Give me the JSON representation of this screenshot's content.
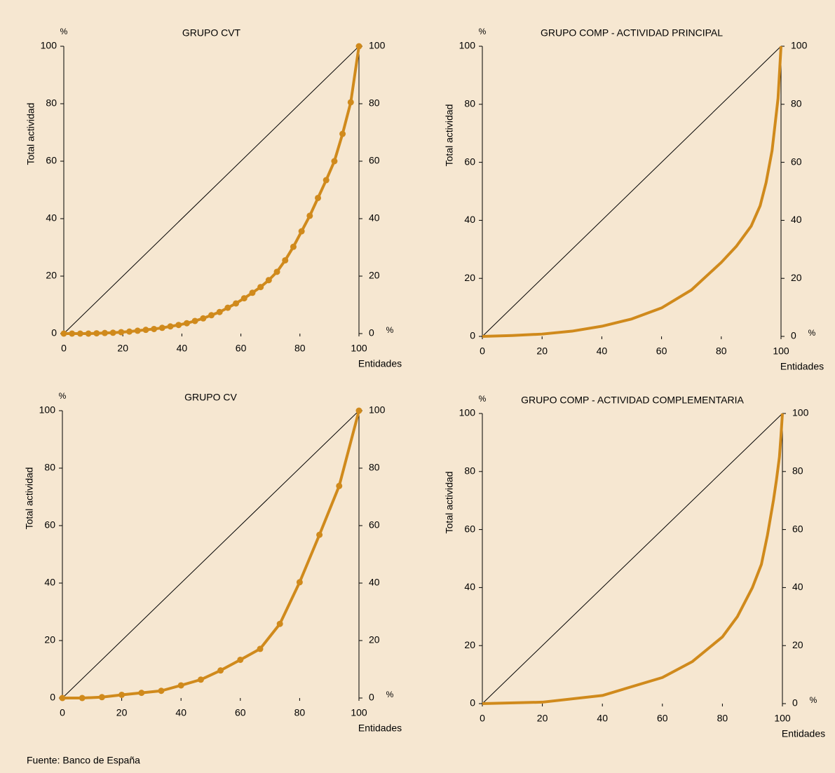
{
  "chart_data": [
    {
      "type": "line",
      "title": "GRUPO CVT",
      "ylabel": "Total actividad",
      "xlabel": "Entidades",
      "y_unit": "%",
      "x_unit": "%",
      "xlim": [
        0,
        100
      ],
      "ylim": [
        0,
        100
      ],
      "y2lim": [
        0,
        100
      ],
      "xticks": [
        0,
        20,
        40,
        60,
        80,
        100
      ],
      "yticks": [
        0,
        20,
        40,
        60,
        80,
        100
      ],
      "y2ticks": [
        0,
        20,
        40,
        60,
        80,
        100
      ],
      "series": [
        {
          "color": "#000000",
          "x": [
            0,
            100
          ],
          "values": [
            0,
            100
          ]
        },
        {
          "color": "#d08a1c",
          "markers": true,
          "x": [
            0,
            2.78,
            5.56,
            8.33,
            11.11,
            13.89,
            16.67,
            19.44,
            22.22,
            25,
            27.78,
            30.56,
            33.33,
            36.11,
            38.89,
            41.67,
            44.44,
            47.22,
            50,
            52.78,
            55.56,
            58.33,
            61.11,
            63.89,
            66.67,
            69.44,
            72.22,
            75,
            77.78,
            80.56,
            83.33,
            86.11,
            88.89,
            91.67,
            94.44,
            97.22,
            100
          ],
          "values": [
            0,
            0,
            0,
            0,
            0.1,
            0.2,
            0.3,
            0.5,
            0.7,
            1.0,
            1.3,
            1.6,
            2.0,
            2.5,
            3.0,
            3.6,
            4.4,
            5.3,
            6.4,
            7.5,
            9.0,
            10.5,
            12.3,
            14.2,
            16.2,
            18.6,
            21.5,
            25.5,
            30.2,
            35.6,
            41.0,
            47.2,
            53.4,
            60.0,
            69.5,
            80.5,
            100
          ]
        }
      ]
    },
    {
      "type": "line",
      "title": "GRUPO COMP - ACTIVIDAD PRINCIPAL",
      "ylabel": "Total actividad",
      "xlabel": "Entidades",
      "y_unit": "%",
      "x_unit": "%",
      "xlim": [
        0,
        100
      ],
      "ylim": [
        0,
        100
      ],
      "y2lim": [
        0,
        100
      ],
      "xticks": [
        0,
        20,
        40,
        60,
        80,
        100
      ],
      "yticks": [
        0,
        20,
        40,
        60,
        80,
        100
      ],
      "y2ticks": [
        0,
        20,
        40,
        60,
        80,
        100
      ],
      "series": [
        {
          "color": "#000000",
          "x": [
            0,
            100
          ],
          "values": [
            0,
            100
          ]
        },
        {
          "color": "#d08a1c",
          "markers": false,
          "x": [
            0,
            10,
            20,
            30,
            40,
            50,
            60,
            70,
            80,
            85,
            90,
            93,
            95,
            97,
            99,
            100
          ],
          "values": [
            0,
            0.3,
            0.8,
            1.8,
            3.5,
            6,
            9.8,
            16,
            25.5,
            31,
            38,
            45,
            53,
            64,
            82,
            100
          ]
        }
      ]
    },
    {
      "type": "line",
      "title": "GRUPO CV",
      "ylabel": "Total actividad",
      "xlabel": "Entidades",
      "y_unit": "%",
      "x_unit": "%",
      "xlim": [
        0,
        100
      ],
      "ylim": [
        0,
        100
      ],
      "y2lim": [
        0,
        100
      ],
      "xticks": [
        0,
        20,
        40,
        60,
        80,
        100
      ],
      "yticks": [
        0,
        20,
        40,
        60,
        80,
        100
      ],
      "y2ticks": [
        0,
        20,
        40,
        60,
        80,
        100
      ],
      "series": [
        {
          "color": "#000000",
          "x": [
            0,
            100
          ],
          "values": [
            0,
            100
          ]
        },
        {
          "color": "#d08a1c",
          "markers": true,
          "x": [
            0,
            6.67,
            13.33,
            20,
            26.67,
            33.33,
            40,
            46.67,
            53.33,
            60,
            66.67,
            73.33,
            80,
            86.67,
            93.33,
            100
          ],
          "values": [
            0,
            0,
            0.3,
            1.1,
            1.8,
            2.5,
            4.4,
            6.4,
            9.6,
            13.3,
            17.1,
            25.8,
            40.3,
            56.8,
            73.8,
            100
          ]
        }
      ]
    },
    {
      "type": "line",
      "title": "GRUPO COMP - ACTIVIDAD COMPLEMENTARIA",
      "ylabel": "Total actividad",
      "xlabel": "Entidades",
      "y_unit": "%",
      "x_unit": "%",
      "xlim": [
        0,
        100
      ],
      "ylim": [
        0,
        100
      ],
      "y2lim": [
        0,
        100
      ],
      "xticks": [
        0,
        20,
        40,
        60,
        80,
        100
      ],
      "yticks": [
        0,
        20,
        40,
        60,
        80,
        100
      ],
      "y2ticks": [
        0,
        20,
        40,
        60,
        80,
        100
      ],
      "series": [
        {
          "color": "#000000",
          "x": [
            0,
            100
          ],
          "values": [
            0,
            100
          ]
        },
        {
          "color": "#d08a1c",
          "markers": false,
          "x": [
            0,
            20,
            40,
            60,
            70,
            80,
            85,
            90,
            93,
            95,
            97,
            98,
            99,
            99.5,
            100
          ],
          "values": [
            0,
            0.5,
            2.8,
            9,
            14.5,
            23,
            30,
            40,
            48,
            58,
            70,
            77,
            85,
            92,
            100
          ]
        }
      ]
    }
  ],
  "source": "Fuente: Banco de España"
}
